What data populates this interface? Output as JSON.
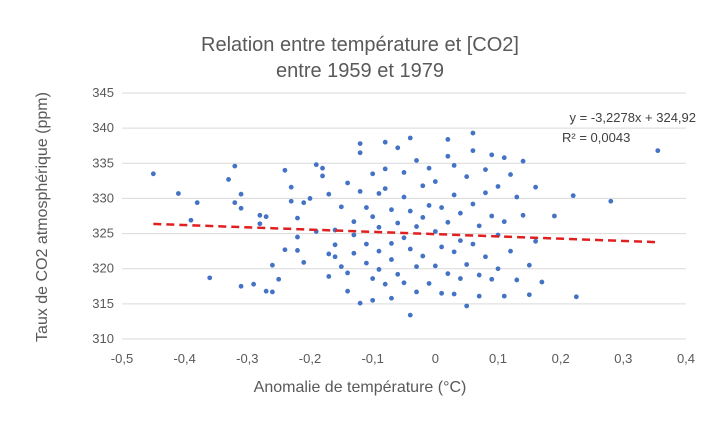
{
  "chart_data": {
    "type": "scatter",
    "title": [
      "Relation entre température et [CO2]",
      "entre 1959 et 1979"
    ],
    "xlabel": "Anomalie de température (°C)",
    "ylabel": "Taux de CO2 atmosphérique (ppm)",
    "xlim": [
      -0.5,
      0.4
    ],
    "ylim": [
      310,
      345
    ],
    "xticks": [
      "-0,5",
      "-0,4",
      "-0,3",
      "-0,2",
      "-0,1",
      "0",
      "0,1",
      "0,2",
      "0,3",
      "0,4"
    ],
    "yticks": [
      "310",
      "315",
      "320",
      "325",
      "330",
      "335",
      "340",
      "345"
    ],
    "grid": "horizontal",
    "marker_color": "#4472C4",
    "trendline": {
      "style": "dashed",
      "color": "#E02020",
      "slope": -3.2278,
      "intercept": 324.92,
      "x_range": [
        -0.45,
        0.355
      ],
      "equation": "y = -3,2278x + 324,92",
      "r2": "R² = 0,0043"
    },
    "points": [
      [
        -0.45,
        333.5
      ],
      [
        -0.41,
        330.7
      ],
      [
        -0.39,
        326.9
      ],
      [
        -0.38,
        329.4
      ],
      [
        -0.36,
        318.7
      ],
      [
        -0.33,
        332.7
      ],
      [
        -0.32,
        334.6
      ],
      [
        -0.32,
        329.4
      ],
      [
        -0.31,
        328.6
      ],
      [
        -0.31,
        317.5
      ],
      [
        -0.31,
        330.6
      ],
      [
        -0.29,
        317.8
      ],
      [
        -0.28,
        327.6
      ],
      [
        -0.28,
        326.4
      ],
      [
        -0.27,
        316.8
      ],
      [
        -0.27,
        327.4
      ],
      [
        -0.26,
        320.5
      ],
      [
        -0.26,
        316.7
      ],
      [
        -0.25,
        318.5
      ],
      [
        -0.24,
        334.0
      ],
      [
        -0.24,
        322.7
      ],
      [
        -0.23,
        331.6
      ],
      [
        -0.23,
        329.6
      ],
      [
        -0.22,
        327.2
      ],
      [
        -0.22,
        324.5
      ],
      [
        -0.22,
        322.6
      ],
      [
        -0.21,
        320.9
      ],
      [
        -0.21,
        329.4
      ],
      [
        -0.2,
        330.0
      ],
      [
        -0.19,
        334.8
      ],
      [
        -0.19,
        325.3
      ],
      [
        -0.18,
        333.2
      ],
      [
        -0.18,
        334.3
      ],
      [
        -0.17,
        330.6
      ],
      [
        -0.17,
        322.1
      ],
      [
        -0.17,
        318.9
      ],
      [
        -0.16,
        325.5
      ],
      [
        -0.16,
        323.4
      ],
      [
        -0.16,
        321.7
      ],
      [
        -0.15,
        320.3
      ],
      [
        -0.15,
        328.8
      ],
      [
        -0.14,
        319.4
      ],
      [
        -0.14,
        316.8
      ],
      [
        -0.14,
        332.2
      ],
      [
        -0.13,
        326.7
      ],
      [
        -0.13,
        324.8
      ],
      [
        -0.13,
        322.2
      ],
      [
        -0.12,
        315.1
      ],
      [
        -0.12,
        337.8
      ],
      [
        -0.12,
        336.5
      ],
      [
        -0.12,
        331.0
      ],
      [
        -0.11,
        328.7
      ],
      [
        -0.11,
        323.5
      ],
      [
        -0.11,
        320.8
      ],
      [
        -0.1,
        315.5
      ],
      [
        -0.1,
        318.6
      ],
      [
        -0.1,
        333.5
      ],
      [
        -0.1,
        327.4
      ],
      [
        -0.09,
        330.7
      ],
      [
        -0.09,
        325.9
      ],
      [
        -0.09,
        322.5
      ],
      [
        -0.09,
        319.9
      ],
      [
        -0.08,
        334.2
      ],
      [
        -0.08,
        338.0
      ],
      [
        -0.08,
        331.4
      ],
      [
        -0.08,
        317.8
      ],
      [
        -0.07,
        328.4
      ],
      [
        -0.07,
        323.6
      ],
      [
        -0.07,
        321.3
      ],
      [
        -0.07,
        315.8
      ],
      [
        -0.06,
        337.2
      ],
      [
        -0.06,
        326.5
      ],
      [
        -0.06,
        319.2
      ],
      [
        -0.05,
        333.7
      ],
      [
        -0.05,
        330.2
      ],
      [
        -0.05,
        324.4
      ],
      [
        -0.05,
        318.0
      ],
      [
        -0.04,
        338.6
      ],
      [
        -0.04,
        328.2
      ],
      [
        -0.04,
        322.8
      ],
      [
        -0.04,
        313.4
      ],
      [
        -0.03,
        335.4
      ],
      [
        -0.03,
        326.0
      ],
      [
        -0.03,
        320.3
      ],
      [
        -0.03,
        316.7
      ],
      [
        -0.02,
        331.8
      ],
      [
        -0.02,
        327.3
      ],
      [
        -0.02,
        321.8
      ],
      [
        -0.01,
        334.3
      ],
      [
        -0.01,
        329.0
      ],
      [
        -0.01,
        317.9
      ],
      [
        0.0,
        332.4
      ],
      [
        0.0,
        325.3
      ],
      [
        0.0,
        320.4
      ],
      [
        0.01,
        328.7
      ],
      [
        0.01,
        323.1
      ],
      [
        0.01,
        316.5
      ],
      [
        0.02,
        338.4
      ],
      [
        0.02,
        336.0
      ],
      [
        0.02,
        326.6
      ],
      [
        0.02,
        319.3
      ],
      [
        0.03,
        334.7
      ],
      [
        0.03,
        330.5
      ],
      [
        0.03,
        322.4
      ],
      [
        0.03,
        316.4
      ],
      [
        0.04,
        327.9
      ],
      [
        0.04,
        324.0
      ],
      [
        0.04,
        318.6
      ],
      [
        0.05,
        333.1
      ],
      [
        0.05,
        320.6
      ],
      [
        0.05,
        314.7
      ],
      [
        0.06,
        339.3
      ],
      [
        0.06,
        336.8
      ],
      [
        0.06,
        329.2
      ],
      [
        0.06,
        323.5
      ],
      [
        0.07,
        326.1
      ],
      [
        0.07,
        319.1
      ],
      [
        0.07,
        316.1
      ],
      [
        0.08,
        334.1
      ],
      [
        0.08,
        330.8
      ],
      [
        0.08,
        321.7
      ],
      [
        0.09,
        336.2
      ],
      [
        0.09,
        327.5
      ],
      [
        0.09,
        318.5
      ],
      [
        0.1,
        331.7
      ],
      [
        0.1,
        324.8
      ],
      [
        0.1,
        320.0
      ],
      [
        0.11,
        335.8
      ],
      [
        0.11,
        326.7
      ],
      [
        0.11,
        316.1
      ],
      [
        0.12,
        333.4
      ],
      [
        0.12,
        322.5
      ],
      [
        0.13,
        330.2
      ],
      [
        0.13,
        318.4
      ],
      [
        0.14,
        327.6
      ],
      [
        0.14,
        335.3
      ],
      [
        0.15,
        320.5
      ],
      [
        0.15,
        316.3
      ],
      [
        0.16,
        331.6
      ],
      [
        0.16,
        323.9
      ],
      [
        0.17,
        318.1
      ],
      [
        0.19,
        327.5
      ],
      [
        0.22,
        330.4
      ],
      [
        0.225,
        316.0
      ],
      [
        0.28,
        329.6
      ],
      [
        0.355,
        336.8
      ]
    ]
  }
}
